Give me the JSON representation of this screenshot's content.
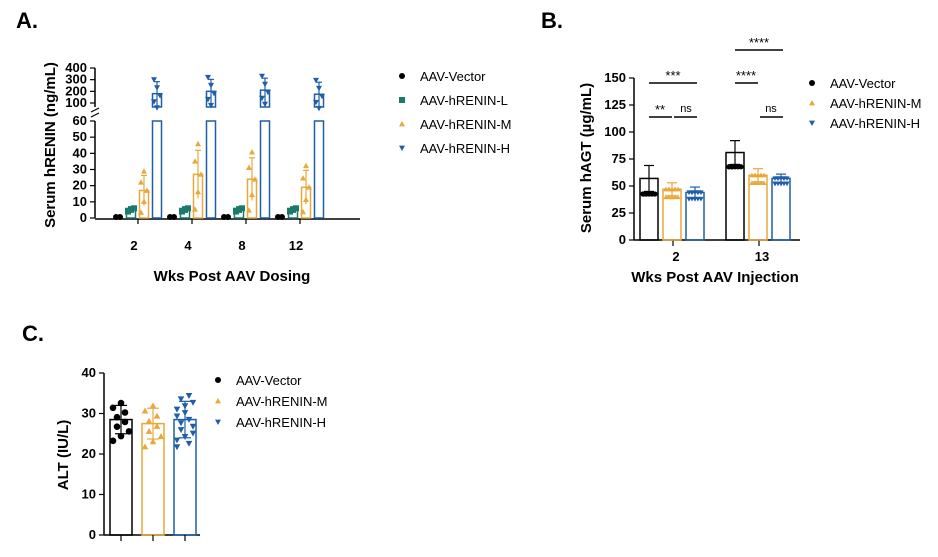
{
  "panels": {
    "A": "A.",
    "B": "B.",
    "C": "C."
  },
  "colors": {
    "vector": "#000000",
    "L": "#1a7a6b",
    "M": "#e8a83a",
    "H": "#1f5fa8"
  },
  "chart_data": [
    {
      "panel": "A",
      "type": "bar",
      "xlabel": "Wks Post AAV Dosing",
      "ylabel": "Serum hRENIN (ng/mL)",
      "categories": [
        "2",
        "4",
        "8",
        "12"
      ],
      "y_axis_break": true,
      "lower_ticks": [
        "0",
        "10",
        "20",
        "30",
        "40",
        "50",
        "60"
      ],
      "upper_ticks": [
        "100",
        "200",
        "300",
        "400"
      ],
      "lower_range": [
        0,
        60
      ],
      "upper_range": [
        100,
        400
      ],
      "series": [
        {
          "name": "AAV-Vector",
          "values": [
            0,
            0,
            0,
            0
          ]
        },
        {
          "name": "AAV-hRENIN-L",
          "values": [
            5,
            5,
            5,
            5
          ]
        },
        {
          "name": "AAV-hRENIN-M",
          "values": [
            17,
            27,
            24,
            19
          ]
        },
        {
          "name": "AAV-hRENIN-H",
          "values": [
            180,
            200,
            210,
            175
          ]
        }
      ],
      "legend": [
        "AAV-Vector",
        "AAV-hRENIN-L",
        "AAV-hRENIN-M",
        "AAV-hRENIN-H"
      ],
      "legend_position": "right"
    },
    {
      "panel": "B",
      "type": "bar",
      "xlabel": "Wks Post AAV Injection",
      "ylabel": "Serum hAGT (µg/mL)",
      "categories": [
        "2",
        "13"
      ],
      "ylim": [
        0,
        150
      ],
      "yticks": [
        "0",
        "25",
        "50",
        "75",
        "100",
        "125",
        "150"
      ],
      "series": [
        {
          "name": "AAV-Vector",
          "values": [
            57,
            81
          ]
        },
        {
          "name": "AAV-hRENIN-M",
          "values": [
            47,
            60
          ]
        },
        {
          "name": "AAV-hRENIN-H",
          "values": [
            44,
            57
          ]
        }
      ],
      "significance": [
        {
          "label": "**"
        },
        {
          "label": "ns"
        },
        {
          "label": "***"
        },
        {
          "label": "****"
        },
        {
          "label": "ns"
        },
        {
          "label": "****"
        }
      ],
      "legend": [
        "AAV-Vector",
        "AAV-hRENIN-M",
        "AAV-hRENIN-H"
      ],
      "legend_position": "right"
    },
    {
      "panel": "C",
      "type": "bar",
      "ylabel": "ALT (IU/L)",
      "ylim": [
        0,
        40
      ],
      "yticks": [
        "0",
        "10",
        "20",
        "30",
        "40"
      ],
      "series": [
        {
          "name": "AAV-Vector",
          "value": 28.5
        },
        {
          "name": "AAV-hRENIN-M",
          "value": 27.5
        },
        {
          "name": "AAV-hRENIN-H",
          "value": 28.5
        }
      ],
      "legend": [
        "AAV-Vector",
        "AAV-hRENIN-M",
        "AAV-hRENIN-H"
      ],
      "legend_position": "right"
    }
  ]
}
